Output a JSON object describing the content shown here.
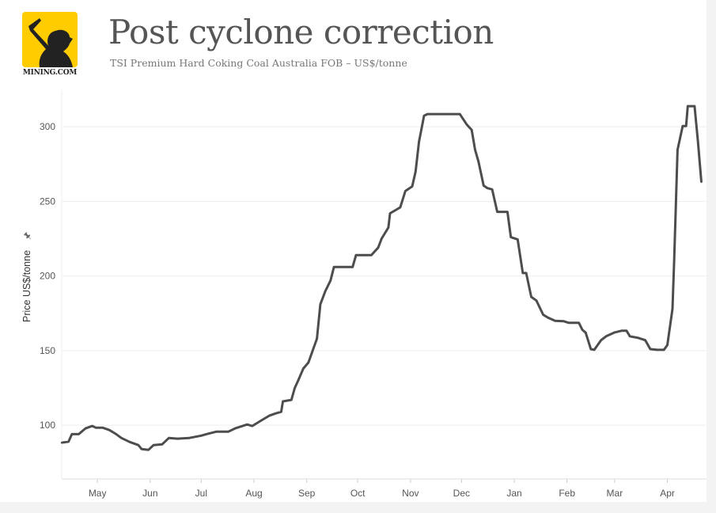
{
  "header": {
    "title": "Post cyclone correction",
    "subtitle": "TSI Premium Hard Coking Coal Australia FOB – US$/tonne",
    "logo_text": "MINING.COM",
    "logo_color": "#ffcc00"
  },
  "chart_data": {
    "type": "line",
    "title": "Post cyclone correction",
    "subtitle": "TSI Premium Hard Coking Coal Australia FOB – US$/tonne",
    "xlabel": "",
    "ylabel": "Price US$/tonne",
    "ylabel_icon": "pin-icon",
    "xlim": [
      "2016-04-10",
      "2017-04-24"
    ],
    "ylim": [
      64,
      325
    ],
    "yticks": [
      100,
      150,
      200,
      250,
      300
    ],
    "xticks": [
      {
        "date": "2016-05-01",
        "label": "May"
      },
      {
        "date": "2016-06-01",
        "label": "Jun"
      },
      {
        "date": "2016-07-01",
        "label": "Jul"
      },
      {
        "date": "2016-08-01",
        "label": "Aug"
      },
      {
        "date": "2016-09-01",
        "label": "Sep"
      },
      {
        "date": "2016-10-01",
        "label": "Oct"
      },
      {
        "date": "2016-11-01",
        "label": "Nov"
      },
      {
        "date": "2016-12-01",
        "label": "Dec"
      },
      {
        "date": "2017-01-01",
        "label": "Jan"
      },
      {
        "date": "2017-02-01",
        "label": "Feb"
      },
      {
        "date": "2017-03-01",
        "label": "Mar"
      },
      {
        "date": "2017-04-01",
        "label": "Apr"
      }
    ],
    "grid": true,
    "line_color": "#4d4d4d",
    "series": [
      {
        "points": [
          [
            "2016-04-10",
            88.3
          ],
          [
            "2016-04-14",
            89
          ],
          [
            "2016-04-16",
            94
          ],
          [
            "2016-04-20",
            94
          ],
          [
            "2016-04-24",
            97.9
          ],
          [
            "2016-04-28",
            99.5
          ],
          [
            "2016-04-30",
            98.4
          ],
          [
            "2016-05-04",
            98.4
          ],
          [
            "2016-05-08",
            96.8
          ],
          [
            "2016-05-12",
            94
          ],
          [
            "2016-05-15",
            91.5
          ],
          [
            "2016-05-20",
            88.8
          ],
          [
            "2016-05-25",
            86.7
          ],
          [
            "2016-05-27",
            84
          ],
          [
            "2016-05-31",
            83.5
          ],
          [
            "2016-06-03",
            86.7
          ],
          [
            "2016-06-08",
            87.2
          ],
          [
            "2016-06-12",
            91.5
          ],
          [
            "2016-06-17",
            91
          ],
          [
            "2016-06-24",
            91.5
          ],
          [
            "2016-07-01",
            93
          ],
          [
            "2016-07-04",
            94
          ],
          [
            "2016-07-10",
            95.7
          ],
          [
            "2016-07-17",
            95.7
          ],
          [
            "2016-07-21",
            97.9
          ],
          [
            "2016-07-28",
            100.5
          ],
          [
            "2016-07-31",
            99.5
          ],
          [
            "2016-08-05",
            103
          ],
          [
            "2016-08-10",
            106.4
          ],
          [
            "2016-08-14",
            108
          ],
          [
            "2016-08-17",
            109
          ],
          [
            "2016-08-18",
            116
          ],
          [
            "2016-08-23",
            117
          ],
          [
            "2016-08-25",
            125
          ],
          [
            "2016-08-27",
            130
          ],
          [
            "2016-08-30",
            138
          ],
          [
            "2016-09-02",
            142
          ],
          [
            "2016-09-07",
            158
          ],
          [
            "2016-09-09",
            181
          ],
          [
            "2016-09-12",
            190
          ],
          [
            "2016-09-15",
            197
          ],
          [
            "2016-09-17",
            206
          ],
          [
            "2016-09-21",
            206
          ],
          [
            "2016-09-28",
            206
          ],
          [
            "2016-09-30",
            214
          ],
          [
            "2016-10-09",
            214
          ],
          [
            "2016-10-13",
            219
          ],
          [
            "2016-10-15",
            225
          ],
          [
            "2016-10-19",
            232.5
          ],
          [
            "2016-10-20",
            242
          ],
          [
            "2016-10-26",
            246
          ],
          [
            "2016-10-29",
            257
          ],
          [
            "2016-11-02",
            260
          ],
          [
            "2016-11-04",
            270
          ],
          [
            "2016-11-06",
            290
          ],
          [
            "2016-11-09",
            307.4
          ],
          [
            "2016-11-11",
            308.5
          ],
          [
            "2016-11-20",
            308.5
          ],
          [
            "2016-11-30",
            308.5
          ],
          [
            "2016-12-04",
            301.6
          ],
          [
            "2016-12-07",
            297.9
          ],
          [
            "2016-12-09",
            284.6
          ],
          [
            "2016-12-11",
            276.6
          ],
          [
            "2016-12-14",
            260.6
          ],
          [
            "2016-12-16",
            259
          ],
          [
            "2016-12-19",
            258
          ],
          [
            "2016-12-22",
            243
          ],
          [
            "2016-12-28",
            243
          ],
          [
            "2016-12-30",
            226
          ],
          [
            "2017-01-03",
            224.5
          ],
          [
            "2017-01-06",
            202
          ],
          [
            "2017-01-08",
            202
          ],
          [
            "2017-01-11",
            186
          ],
          [
            "2017-01-14",
            183.5
          ],
          [
            "2017-01-18",
            174
          ],
          [
            "2017-01-21",
            172
          ],
          [
            "2017-01-25",
            170
          ],
          [
            "2017-01-30",
            169.7
          ],
          [
            "2017-02-02",
            168.6
          ],
          [
            "2017-02-08",
            168.6
          ],
          [
            "2017-02-10",
            164
          ],
          [
            "2017-02-12",
            162
          ],
          [
            "2017-02-15",
            151
          ],
          [
            "2017-02-17",
            150.5
          ],
          [
            "2017-02-21",
            157
          ],
          [
            "2017-02-24",
            159.6
          ],
          [
            "2017-03-01",
            162.2
          ],
          [
            "2017-03-05",
            163.3
          ],
          [
            "2017-03-08",
            163.3
          ],
          [
            "2017-03-10",
            159.6
          ],
          [
            "2017-03-15",
            158.5
          ],
          [
            "2017-03-19",
            157
          ],
          [
            "2017-03-22",
            151
          ],
          [
            "2017-03-26",
            150.5
          ],
          [
            "2017-03-30",
            150.5
          ],
          [
            "2017-04-01",
            153.7
          ],
          [
            "2017-04-04",
            178
          ],
          [
            "2017-04-05",
            210
          ],
          [
            "2017-04-07",
            284.6
          ],
          [
            "2017-04-10",
            300.5
          ],
          [
            "2017-04-12",
            300.5
          ],
          [
            "2017-04-13",
            313.8
          ],
          [
            "2017-04-17",
            313.8
          ],
          [
            "2017-04-19",
            290
          ],
          [
            "2017-04-21",
            263
          ]
        ]
      }
    ]
  }
}
